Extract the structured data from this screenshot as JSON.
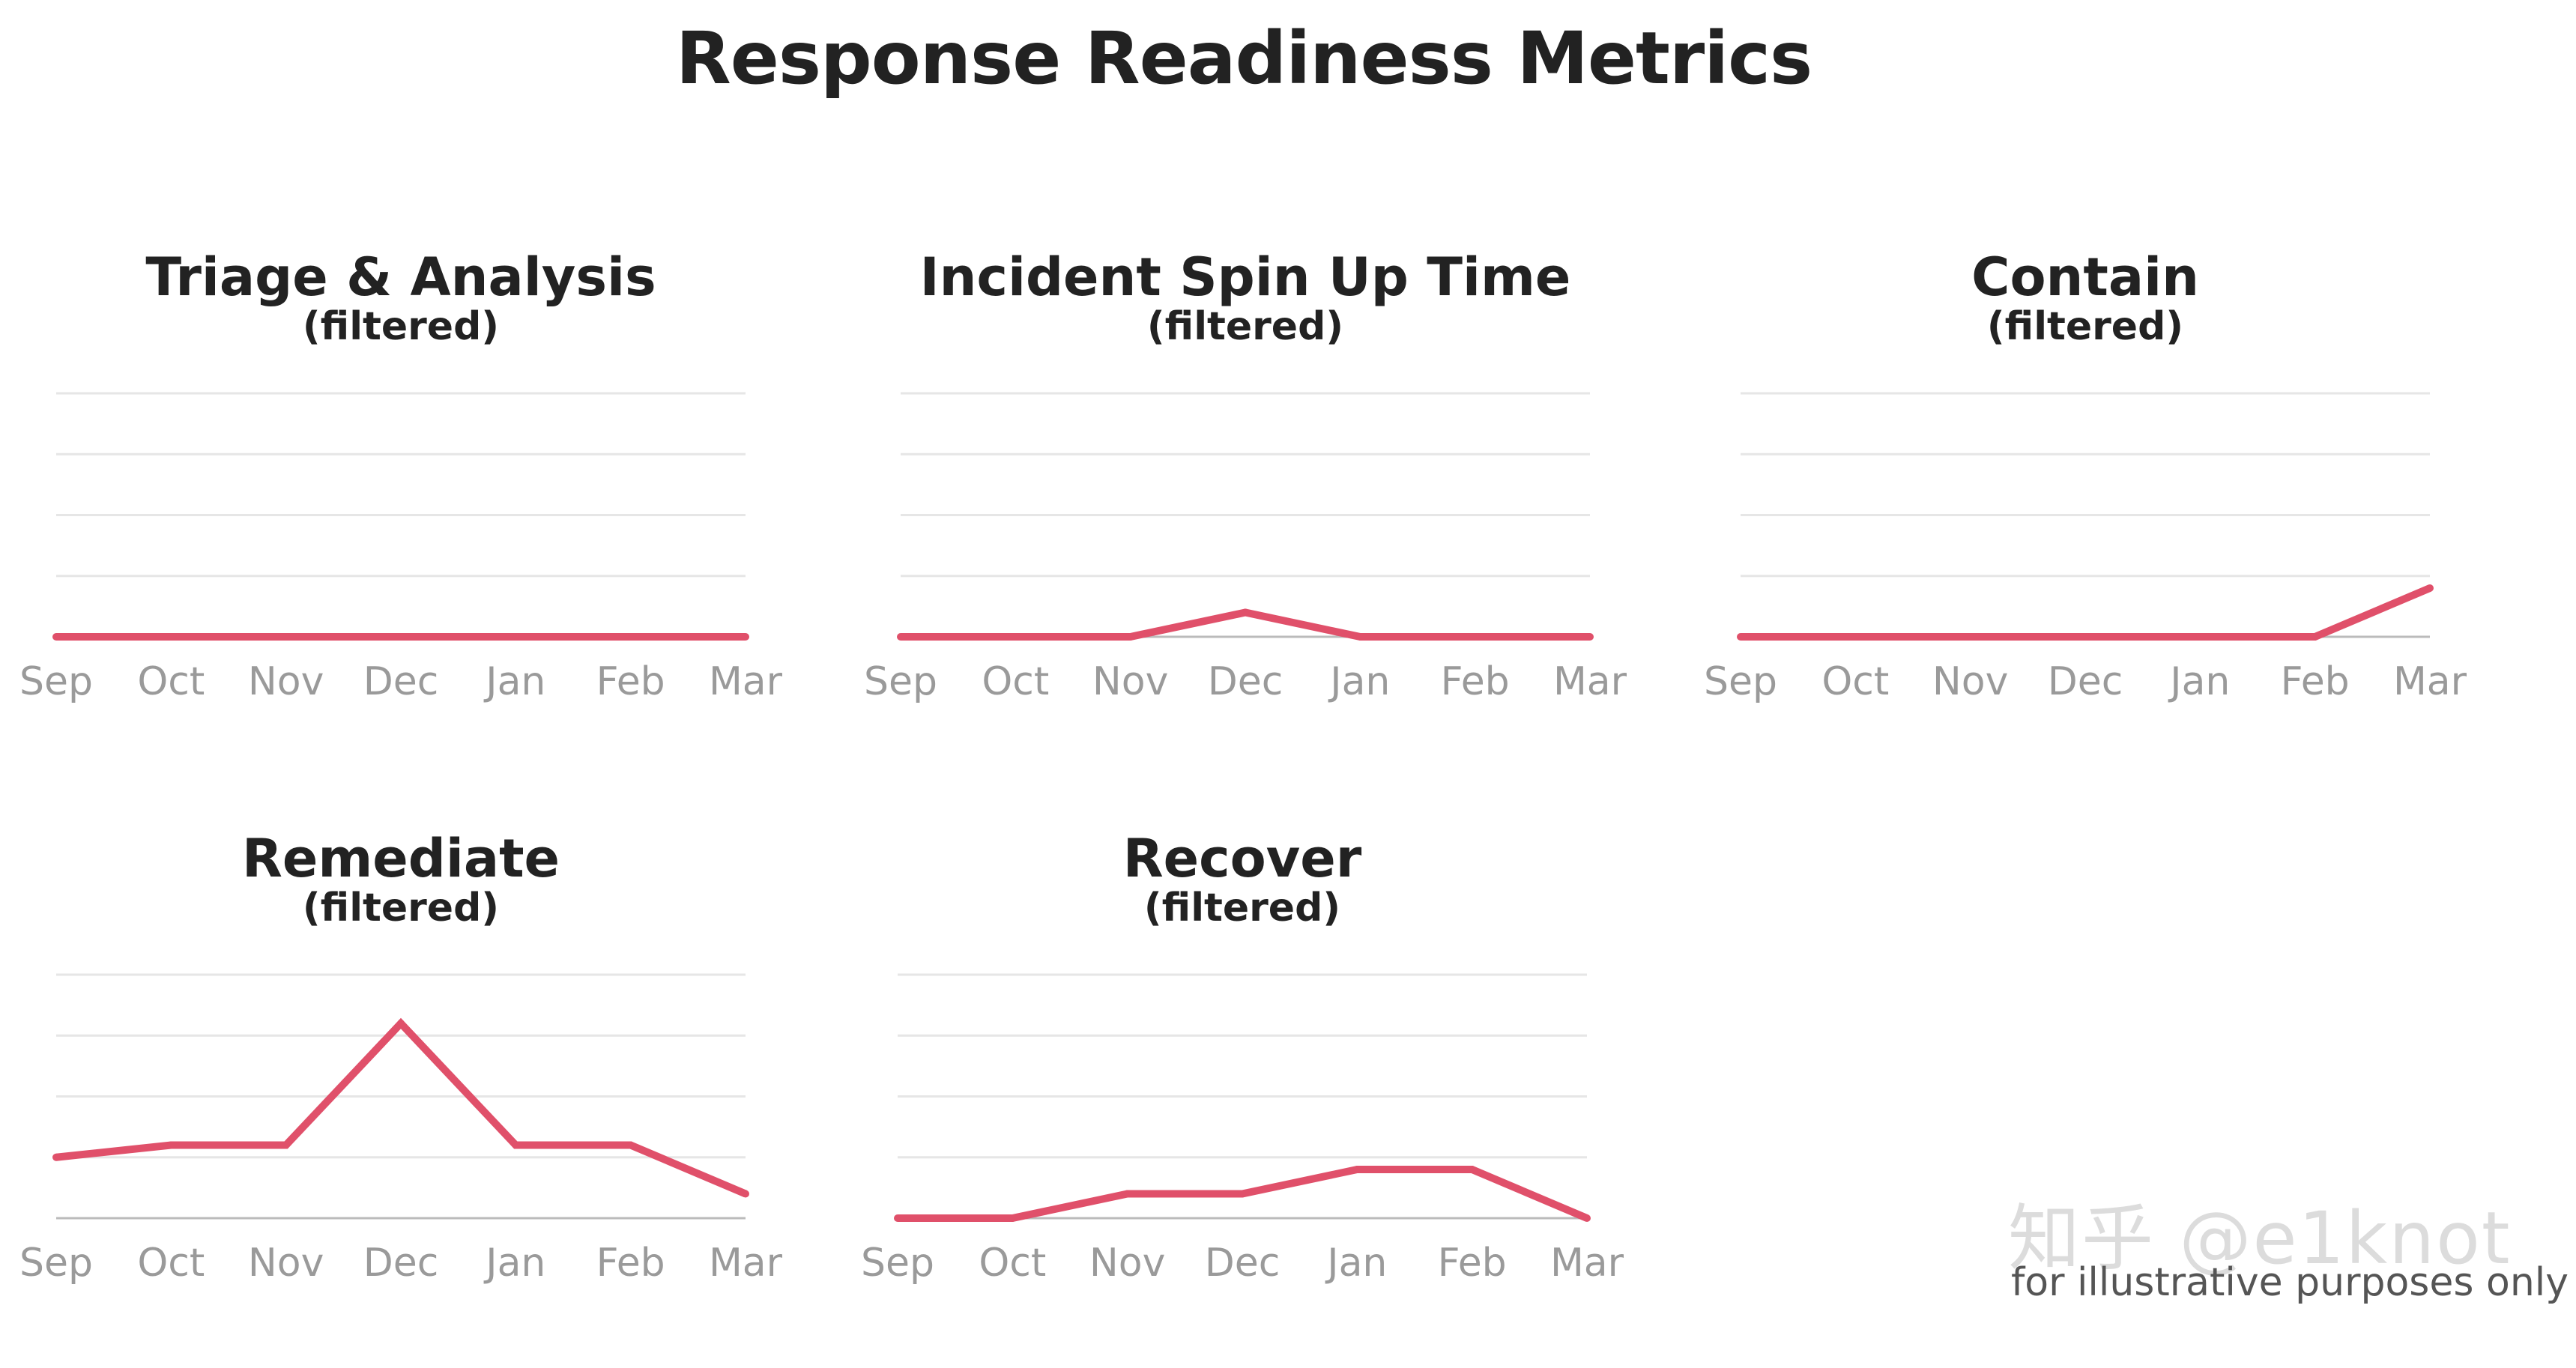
{
  "title": "Response Readiness Metrics",
  "watermark": "知乎 @e1knot",
  "footnote": "for illustrative purposes only",
  "colors": {
    "line": "#e0506a",
    "grid": "#e6e6e6",
    "baseline": "#bbbbbb",
    "tick": "#9a9a9a"
  },
  "chart_data": [
    {
      "type": "line",
      "title": "Triage & Analysis",
      "subtitle": "(filtered)",
      "categories": [
        "Sep",
        "Oct",
        "Nov",
        "Dec",
        "Jan",
        "Feb",
        "Mar"
      ],
      "values": [
        0,
        0,
        0,
        0,
        0,
        0,
        0
      ],
      "ylim": [
        0,
        4
      ],
      "grid": true
    },
    {
      "type": "line",
      "title": "Incident Spin Up Time",
      "subtitle": "(filtered)",
      "categories": [
        "Sep",
        "Oct",
        "Nov",
        "Dec",
        "Jan",
        "Feb",
        "Mar"
      ],
      "values": [
        0,
        0,
        0,
        0.4,
        0,
        0,
        0
      ],
      "ylim": [
        0,
        4
      ],
      "grid": true
    },
    {
      "type": "line",
      "title": "Contain",
      "subtitle": "(filtered)",
      "categories": [
        "Sep",
        "Oct",
        "Nov",
        "Dec",
        "Jan",
        "Feb",
        "Mar"
      ],
      "values": [
        0,
        0,
        0,
        0,
        0,
        0,
        0.8
      ],
      "ylim": [
        0,
        4
      ],
      "grid": true
    },
    {
      "type": "line",
      "title": "Remediate",
      "subtitle": "(filtered)",
      "categories": [
        "Sep",
        "Oct",
        "Nov",
        "Dec",
        "Jan",
        "Feb",
        "Mar"
      ],
      "values": [
        1,
        1.2,
        1.2,
        3.2,
        1.2,
        1.2,
        0.4
      ],
      "ylim": [
        0,
        4
      ],
      "grid": true
    },
    {
      "type": "line",
      "title": "Recover",
      "subtitle": "(filtered)",
      "categories": [
        "Sep",
        "Oct",
        "Nov",
        "Dec",
        "Jan",
        "Feb",
        "Mar"
      ],
      "values": [
        0,
        0,
        0.4,
        0.4,
        0.8,
        0.8,
        0
      ],
      "ylim": [
        0,
        4
      ],
      "grid": true
    }
  ]
}
